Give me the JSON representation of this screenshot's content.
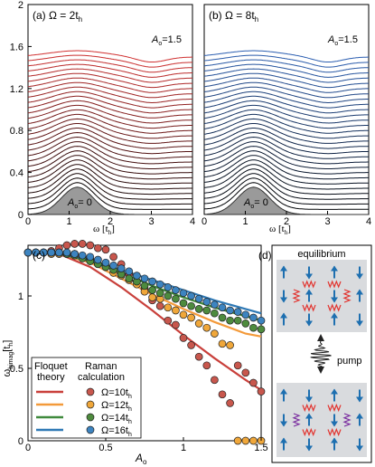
{
  "panels": {
    "a": {
      "label": "(a) Ω = 2t",
      "sub": "h",
      "amp_label": "A",
      "amp_sub": "o",
      "amp_top": "=1.5",
      "amp_bottom": "= 0"
    },
    "b": {
      "label": "(b) Ω = 8t",
      "sub": "h",
      "amp_label": "A",
      "amp_sub": "o",
      "amp_top": "=1.5",
      "amp_bottom": "= 0"
    },
    "c": {
      "label": "(c)"
    },
    "d": {
      "label": "(d)",
      "top_caption": "equilibrium",
      "pump_caption": "pump"
    }
  },
  "axes_top": {
    "y_ticks": [
      "0",
      "0.4",
      "0.8",
      "1.2",
      "1.6",
      "2"
    ],
    "x_ticks": [
      "0",
      "1",
      "2",
      "3",
      "4"
    ],
    "xlabel": "ω [t",
    "xlabel_sub": "h",
    "xlabel_close": "]"
  },
  "axes_c": {
    "y_ticks": [
      "0",
      "0.5",
      "1"
    ],
    "x_ticks": [
      "0",
      "0.5",
      "1",
      "1.5"
    ],
    "xlabel": "A",
    "xlabel_sub": "o",
    "ylabel": "ω",
    "ylabel_sub": "bimag",
    "ylabel_unit": "[t",
    "ylabel_unit_sub": "h",
    "ylabel_close": "]"
  },
  "legend": {
    "col1": [
      "Floquet",
      "theory"
    ],
    "col2": [
      "Raman",
      "calculation"
    ],
    "entries": [
      {
        "text": "Ω=10t",
        "sub": "h",
        "color": "#c9403b",
        "marker": "#c8574d"
      },
      {
        "text": "Ω=12t",
        "sub": "h",
        "color": "#f39a3a",
        "marker": "#f0a73a"
      },
      {
        "text": "Ω=14t",
        "sub": "h",
        "color": "#3f8a3c",
        "marker": "#4e8b3e"
      },
      {
        "text": "Ω=16t",
        "sub": "h",
        "color": "#2f79b5",
        "marker": "#3d84c0"
      }
    ]
  },
  "chart_data": [
    {
      "type": "line",
      "panel": "a",
      "title": "(a) Ω = 2th",
      "xlabel": "ω [th]",
      "xlim": [
        0,
        4
      ],
      "ylim": [
        0,
        2
      ],
      "curves": 31,
      "offset_step": 0.05,
      "amplitude_range": [
        0,
        1.5
      ],
      "color_range": [
        "#000000",
        "#d03030"
      ],
      "peak_at": 1.2
    },
    {
      "type": "line",
      "panel": "b",
      "title": "(b) Ω = 8th",
      "xlabel": "ω [th]",
      "xlim": [
        0,
        4
      ],
      "ylim": [
        0,
        2
      ],
      "curves": 31,
      "offset_step": 0.05,
      "amplitude_range": [
        0,
        1.5
      ],
      "color_range": [
        "#000000",
        "#2a5db0"
      ],
      "peak_at": 1.2
    },
    {
      "type": "scatter",
      "panel": "c",
      "xlabel": "Ao",
      "ylabel": "ωbimag [th]",
      "xlim": [
        0,
        1.5
      ],
      "ylim": [
        0,
        1.35
      ],
      "series": [
        {
          "name": "Ω=10th",
          "line": [
            [
              0,
              1.3
            ],
            [
              0.2,
              1.29
            ],
            [
              0.4,
              1.2
            ],
            [
              0.6,
              1.06
            ],
            [
              0.8,
              0.9
            ],
            [
              1.0,
              0.73
            ],
            [
              1.2,
              0.57
            ],
            [
              1.4,
              0.42
            ],
            [
              1.5,
              0.35
            ]
          ],
          "points": [
            [
              0,
              1.3
            ],
            [
              0.05,
              1.3
            ],
            [
              0.1,
              1.3
            ],
            [
              0.15,
              1.31
            ],
            [
              0.2,
              1.33
            ],
            [
              0.25,
              1.35
            ],
            [
              0.3,
              1.36
            ],
            [
              0.35,
              1.36
            ],
            [
              0.4,
              1.35
            ],
            [
              0.45,
              1.33
            ],
            [
              0.5,
              1.32
            ],
            [
              0.55,
              1.27
            ],
            [
              0.6,
              1.22
            ],
            [
              0.65,
              1.15
            ],
            [
              0.7,
              1.1
            ],
            [
              0.75,
              1.05
            ],
            [
              0.8,
              0.97
            ],
            [
              0.85,
              0.93
            ],
            [
              0.9,
              0.83
            ],
            [
              0.95,
              0.8
            ],
            [
              1.0,
              0.71
            ],
            [
              1.05,
              0.66
            ],
            [
              1.1,
              0.58
            ],
            [
              1.15,
              0.52
            ],
            [
              1.2,
              0.42
            ],
            [
              1.25,
              0.32
            ],
            [
              1.3,
              0.26
            ],
            [
              1.35,
              0.52
            ],
            [
              1.4,
              0.47
            ],
            [
              1.45,
              0.4
            ],
            [
              1.5,
              0.34
            ]
          ]
        },
        {
          "name": "Ω=12th",
          "line": [
            [
              0,
              1.3
            ],
            [
              0.2,
              1.29
            ],
            [
              0.4,
              1.23
            ],
            [
              0.6,
              1.12
            ],
            [
              0.8,
              1.01
            ],
            [
              1.0,
              0.91
            ],
            [
              1.2,
              0.82
            ],
            [
              1.4,
              0.74
            ],
            [
              1.5,
              0.72
            ]
          ],
          "points": [
            [
              0,
              1.3
            ],
            [
              0.05,
              1.3
            ],
            [
              0.1,
              1.3
            ],
            [
              0.15,
              1.29
            ],
            [
              0.2,
              1.29
            ],
            [
              0.25,
              1.29
            ],
            [
              0.3,
              1.29
            ],
            [
              0.35,
              1.27
            ],
            [
              0.4,
              1.25
            ],
            [
              0.45,
              1.22
            ],
            [
              0.5,
              1.2
            ],
            [
              0.55,
              1.16
            ],
            [
              0.6,
              1.14
            ],
            [
              0.65,
              1.11
            ],
            [
              0.7,
              1.08
            ],
            [
              0.75,
              1.03
            ],
            [
              0.8,
              0.99
            ],
            [
              0.85,
              0.98
            ],
            [
              0.9,
              0.92
            ],
            [
              0.95,
              0.9
            ],
            [
              1.0,
              0.87
            ],
            [
              1.05,
              0.85
            ],
            [
              1.1,
              0.81
            ],
            [
              1.15,
              0.78
            ],
            [
              1.2,
              0.74
            ],
            [
              1.25,
              0.67
            ],
            [
              1.3,
              0.66
            ],
            [
              1.35,
              0.0
            ],
            [
              1.4,
              0.0
            ],
            [
              1.45,
              0.0
            ],
            [
              1.5,
              0.0
            ]
          ]
        },
        {
          "name": "Ω=14th",
          "line": [
            [
              0,
              1.3
            ],
            [
              0.2,
              1.29
            ],
            [
              0.4,
              1.24
            ],
            [
              0.6,
              1.16
            ],
            [
              0.8,
              1.07
            ],
            [
              1.0,
              0.99
            ],
            [
              1.2,
              0.92
            ],
            [
              1.4,
              0.86
            ],
            [
              1.5,
              0.83
            ]
          ],
          "points": [
            [
              0,
              1.3
            ],
            [
              0.05,
              1.3
            ],
            [
              0.1,
              1.3
            ],
            [
              0.15,
              1.3
            ],
            [
              0.2,
              1.3
            ],
            [
              0.25,
              1.29
            ],
            [
              0.3,
              1.28
            ],
            [
              0.35,
              1.26
            ],
            [
              0.4,
              1.24
            ],
            [
              0.45,
              1.22
            ],
            [
              0.5,
              1.2
            ],
            [
              0.55,
              1.18
            ],
            [
              0.6,
              1.15
            ],
            [
              0.65,
              1.12
            ],
            [
              0.7,
              1.1
            ],
            [
              0.75,
              1.07
            ],
            [
              0.8,
              1.04
            ],
            [
              0.85,
              1.02
            ],
            [
              0.9,
              1.0
            ],
            [
              0.95,
              0.98
            ],
            [
              1.0,
              0.95
            ],
            [
              1.05,
              0.93
            ],
            [
              1.1,
              0.91
            ],
            [
              1.15,
              0.9
            ],
            [
              1.2,
              0.88
            ],
            [
              1.25,
              0.85
            ],
            [
              1.3,
              0.83
            ],
            [
              1.35,
              0.83
            ],
            [
              1.4,
              0.81
            ],
            [
              1.45,
              0.78
            ],
            [
              1.5,
              0.77
            ]
          ]
        },
        {
          "name": "Ω=16th",
          "line": [
            [
              0,
              1.3
            ],
            [
              0.2,
              1.29
            ],
            [
              0.4,
              1.25
            ],
            [
              0.6,
              1.18
            ],
            [
              0.8,
              1.11
            ],
            [
              1.0,
              1.04
            ],
            [
              1.2,
              0.97
            ],
            [
              1.4,
              0.91
            ],
            [
              1.5,
              0.88
            ]
          ],
          "points": [
            [
              0,
              1.3
            ],
            [
              0.05,
              1.3
            ],
            [
              0.1,
              1.3
            ],
            [
              0.15,
              1.3
            ],
            [
              0.2,
              1.3
            ],
            [
              0.25,
              1.3
            ],
            [
              0.3,
              1.29
            ],
            [
              0.35,
              1.28
            ],
            [
              0.4,
              1.27
            ],
            [
              0.45,
              1.25
            ],
            [
              0.5,
              1.23
            ],
            [
              0.55,
              1.21
            ],
            [
              0.6,
              1.19
            ],
            [
              0.65,
              1.17
            ],
            [
              0.7,
              1.14
            ],
            [
              0.75,
              1.12
            ],
            [
              0.8,
              1.1
            ],
            [
              0.85,
              1.08
            ],
            [
              0.9,
              1.06
            ],
            [
              0.95,
              1.04
            ],
            [
              1.0,
              1.02
            ],
            [
              1.05,
              1.0
            ],
            [
              1.1,
              0.98
            ],
            [
              1.15,
              0.96
            ],
            [
              1.2,
              0.94
            ],
            [
              1.25,
              0.92
            ],
            [
              1.3,
              0.9
            ],
            [
              1.35,
              0.89
            ],
            [
              1.4,
              0.87
            ],
            [
              1.45,
              0.85
            ],
            [
              1.5,
              0.83
            ]
          ]
        }
      ]
    }
  ]
}
